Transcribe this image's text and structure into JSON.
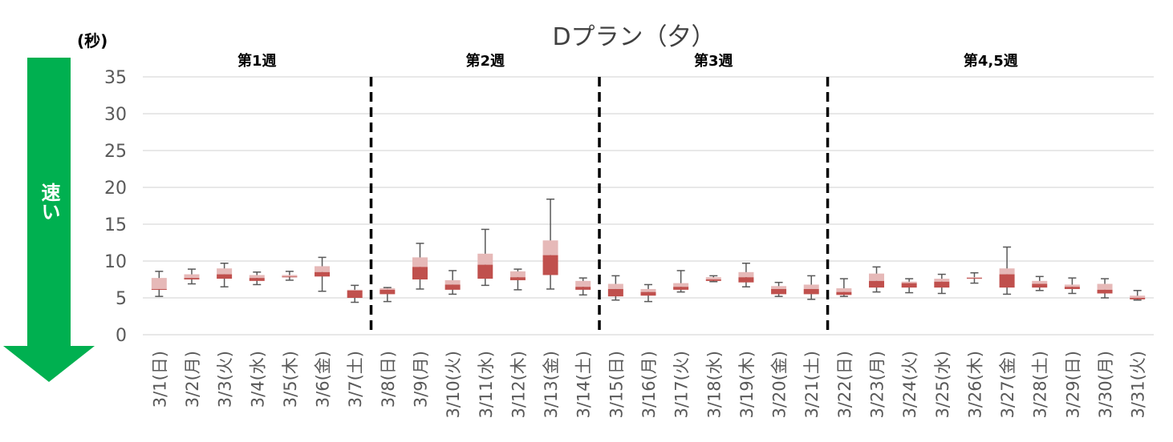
{
  "chart_data": {
    "type": "box",
    "title": "Dプラン（夕）",
    "ylabel": "(秒)",
    "ylim": [
      0,
      35
    ],
    "yticks": [
      0,
      5,
      10,
      15,
      20,
      25,
      30,
      35
    ],
    "grid": true,
    "arrow_label": "速い",
    "weeks": [
      {
        "label": "第1週",
        "start": 0,
        "end": 6
      },
      {
        "label": "第2週",
        "start": 7,
        "end": 13
      },
      {
        "label": "第3週",
        "start": 14,
        "end": 20
      },
      {
        "label": "第4,5週",
        "start": 21,
        "end": 30
      }
    ],
    "week_separators_after": [
      6,
      13,
      20
    ],
    "categories": [
      "3/1(日)",
      "3/2(月)",
      "3/3(火)",
      "3/4(水)",
      "3/5(木)",
      "3/6(金)",
      "3/7(土)",
      "3/8(日)",
      "3/9(月)",
      "3/10(火)",
      "3/11(水)",
      "3/12(木)",
      "3/13(金)",
      "3/14(土)",
      "3/15(日)",
      "3/16(月)",
      "3/17(火)",
      "3/18(水)",
      "3/19(木)",
      "3/20(金)",
      "3/21(土)",
      "3/22(日)",
      "3/23(月)",
      "3/24(火)",
      "3/25(水)",
      "3/26(木)",
      "3/27(金)",
      "3/28(土)",
      "3/29(日)",
      "3/30(月)",
      "3/31(火)"
    ],
    "boxes": [
      {
        "min": 5.2,
        "q1": 6.1,
        "median": 6.2,
        "q3": 7.7,
        "max": 8.6
      },
      {
        "min": 6.9,
        "q1": 7.5,
        "median": 7.7,
        "q3": 8.2,
        "max": 8.9
      },
      {
        "min": 6.5,
        "q1": 7.6,
        "median": 8.2,
        "q3": 9.0,
        "max": 9.7
      },
      {
        "min": 6.8,
        "q1": 7.3,
        "median": 7.7,
        "q3": 8.1,
        "max": 8.5
      },
      {
        "min": 7.4,
        "q1": 7.8,
        "median": 7.9,
        "q3": 8.1,
        "max": 8.6
      },
      {
        "min": 5.9,
        "q1": 7.9,
        "median": 8.5,
        "q3": 9.3,
        "max": 10.5
      },
      {
        "min": 4.4,
        "q1": 5.0,
        "median": 6.0,
        "q3": 6.1,
        "max": 6.7
      },
      {
        "min": 4.5,
        "q1": 5.5,
        "median": 6.1,
        "q3": 6.3,
        "max": 6.4
      },
      {
        "min": 6.2,
        "q1": 7.5,
        "median": 9.2,
        "q3": 10.5,
        "max": 12.4
      },
      {
        "min": 5.5,
        "q1": 6.1,
        "median": 6.8,
        "q3": 7.4,
        "max": 8.7
      },
      {
        "min": 6.7,
        "q1": 7.6,
        "median": 9.5,
        "q3": 11.0,
        "max": 14.3
      },
      {
        "min": 6.1,
        "q1": 7.4,
        "median": 7.8,
        "q3": 8.6,
        "max": 8.9
      },
      {
        "min": 6.2,
        "q1": 8.1,
        "median": 10.8,
        "q3": 12.8,
        "max": 18.4
      },
      {
        "min": 5.4,
        "q1": 6.1,
        "median": 6.5,
        "q3": 7.3,
        "max": 7.7
      },
      {
        "min": 4.7,
        "q1": 5.2,
        "median": 6.2,
        "q3": 6.9,
        "max": 8.0
      },
      {
        "min": 4.5,
        "q1": 5.3,
        "median": 5.8,
        "q3": 6.2,
        "max": 6.8
      },
      {
        "min": 5.8,
        "q1": 6.1,
        "median": 6.5,
        "q3": 7.0,
        "max": 8.7
      },
      {
        "min": 7.2,
        "q1": 7.3,
        "median": 7.5,
        "q3": 7.8,
        "max": 8.0
      },
      {
        "min": 6.5,
        "q1": 7.1,
        "median": 7.8,
        "q3": 8.5,
        "max": 9.7
      },
      {
        "min": 5.2,
        "q1": 5.5,
        "median": 6.2,
        "q3": 6.6,
        "max": 7.1
      },
      {
        "min": 4.8,
        "q1": 5.5,
        "median": 6.2,
        "q3": 6.8,
        "max": 8.0
      },
      {
        "min": 5.2,
        "q1": 5.4,
        "median": 5.8,
        "q3": 6.3,
        "max": 7.6
      },
      {
        "min": 5.8,
        "q1": 6.4,
        "median": 7.3,
        "q3": 8.3,
        "max": 9.2
      },
      {
        "min": 5.7,
        "q1": 6.4,
        "median": 7.0,
        "q3": 7.2,
        "max": 7.6
      },
      {
        "min": 5.6,
        "q1": 6.4,
        "median": 7.2,
        "q3": 7.6,
        "max": 8.2
      },
      {
        "min": 7.0,
        "q1": 7.6,
        "median": 7.7,
        "q3": 7.8,
        "max": 8.4
      },
      {
        "min": 5.5,
        "q1": 6.4,
        "median": 8.2,
        "q3": 9.0,
        "max": 11.9
      },
      {
        "min": 6.0,
        "q1": 6.4,
        "median": 6.9,
        "q3": 7.3,
        "max": 7.9
      },
      {
        "min": 5.6,
        "q1": 6.2,
        "median": 6.5,
        "q3": 6.8,
        "max": 7.7
      },
      {
        "min": 5.0,
        "q1": 5.6,
        "median": 6.1,
        "q3": 6.9,
        "max": 7.6
      },
      {
        "min": 4.7,
        "q1": 4.8,
        "median": 5.0,
        "q3": 5.3,
        "max": 6.0
      }
    ],
    "colors": {
      "lower_box": "#C0504D",
      "upper_box": "#E6B9B8",
      "whisker": "#595959",
      "grid": "#D9D9D9",
      "arrow": "#00B050",
      "separator": "#000000"
    }
  }
}
